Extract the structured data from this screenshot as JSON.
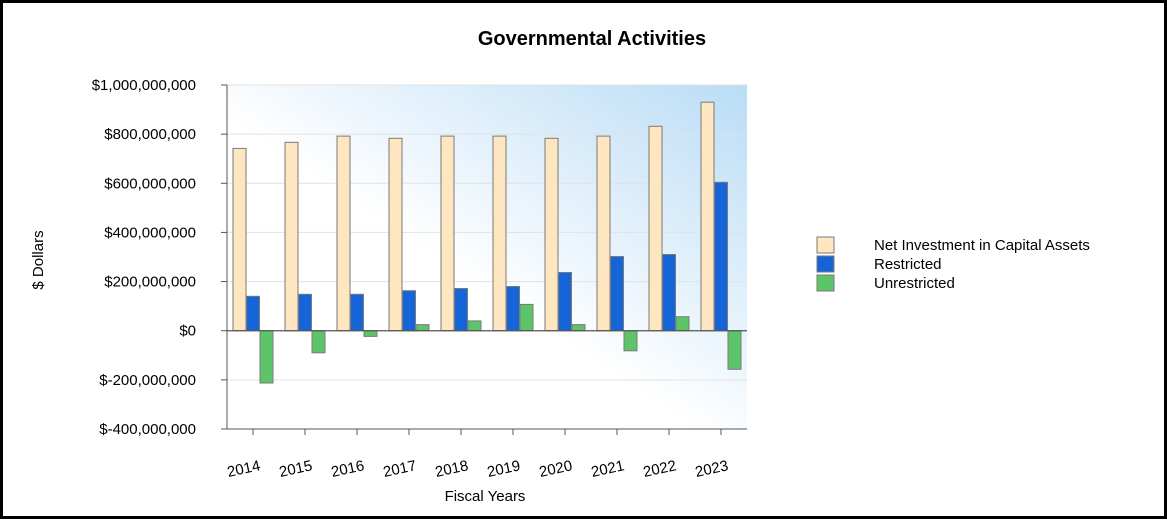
{
  "chart_data": {
    "type": "bar",
    "title": "Governmental Activities",
    "xlabel": "Fiscal Years",
    "ylabel": "$ Dollars",
    "categories": [
      "2014",
      "2015",
      "2016",
      "2017",
      "2018",
      "2019",
      "2020",
      "2021",
      "2022",
      "2023"
    ],
    "ylim": [
      -400000000,
      1000000000
    ],
    "yticks": [
      {
        "value": 1000000000,
        "label": "$1,000,000,000"
      },
      {
        "value": 800000000,
        "label": "$800,000,000"
      },
      {
        "value": 600000000,
        "label": "$600,000,000"
      },
      {
        "value": 400000000,
        "label": "$400,000,000"
      },
      {
        "value": 200000000,
        "label": "$200,000,000"
      },
      {
        "value": 0,
        "label": "$0"
      },
      {
        "value": -200000000,
        "label": "$-200,000,000"
      },
      {
        "value": -400000000,
        "label": "$-400,000,000"
      }
    ],
    "series": [
      {
        "name": "Net Investment in Capital Assets",
        "color": "#fde6c0",
        "values": [
          742000000,
          767000000,
          792000000,
          783000000,
          792000000,
          792000000,
          783000000,
          792000000,
          832000000,
          930000000
        ]
      },
      {
        "name": "Restricted",
        "color": "#1565d8",
        "values": [
          140000000,
          148000000,
          148000000,
          163000000,
          172000000,
          180000000,
          237000000,
          302000000,
          310000000,
          604000000
        ]
      },
      {
        "name": "Unrestricted",
        "color": "#5ec46a",
        "values": [
          -213000000,
          -90000000,
          -23000000,
          25000000,
          40000000,
          107000000,
          25000000,
          -82000000,
          57000000,
          -157000000
        ]
      }
    ],
    "grid": true,
    "legend": "right"
  }
}
